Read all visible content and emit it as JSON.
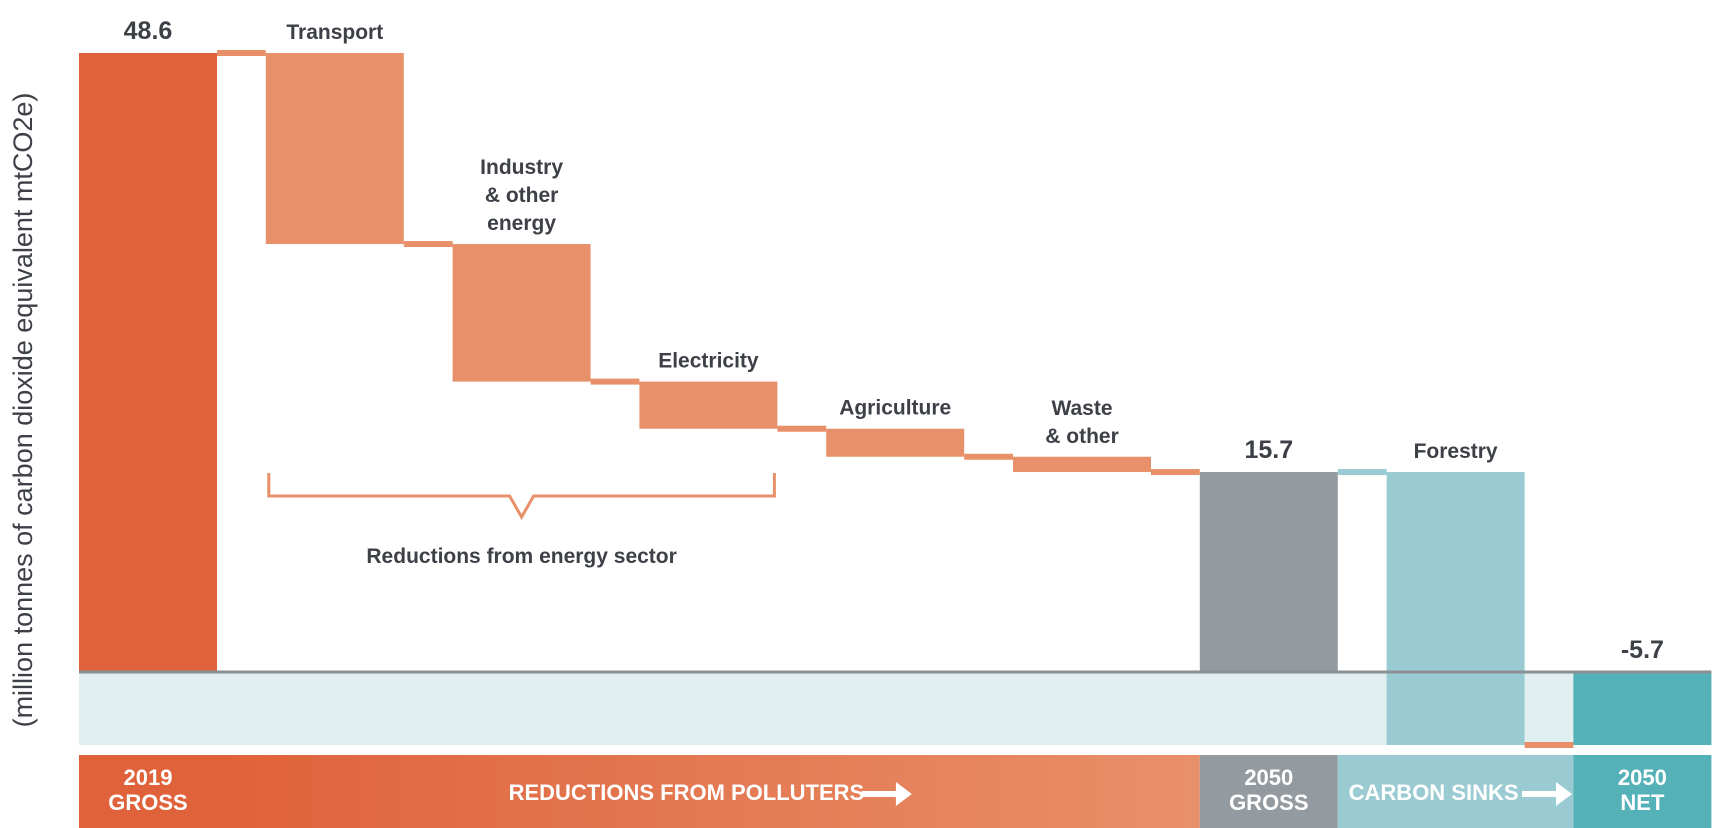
{
  "chart_data": {
    "type": "bar",
    "subtype": "waterfall",
    "ylabel": "(million tonnes of carbon dioxide equivalent mtCO2e)",
    "steps": [
      {
        "label": "",
        "kind": "total",
        "start": 0,
        "end": 48.6,
        "value_label": "48.6",
        "color": "#df623a"
      },
      {
        "label": "Transport",
        "kind": "decrease",
        "start": 48.6,
        "end": 33.6,
        "color": "#e8906a"
      },
      {
        "label": "Industry\n& other\nenergy",
        "kind": "decrease",
        "start": 33.6,
        "end": 22.8,
        "color": "#e8906a"
      },
      {
        "label": "Electricity",
        "kind": "decrease",
        "start": 22.8,
        "end": 19.1,
        "color": "#e8906a"
      },
      {
        "label": "Agriculture",
        "kind": "decrease",
        "start": 19.1,
        "end": 16.9,
        "color": "#e8906a"
      },
      {
        "label": "Waste\n& other",
        "kind": "decrease",
        "start": 16.9,
        "end": 15.7,
        "color": "#e8906a"
      },
      {
        "label": "",
        "kind": "total",
        "start": 0,
        "end": 15.7,
        "value_label": "15.7",
        "color": "#939aa0"
      },
      {
        "label": "Forestry",
        "kind": "decrease",
        "start": 15.7,
        "end": -5.7,
        "color": "#9bcbd2"
      },
      {
        "label": "",
        "kind": "total",
        "start": 0,
        "end": -5.7,
        "value_label": "-5.7",
        "color": "#55b1b8"
      }
    ],
    "ylim": [
      -5.7,
      48.6
    ],
    "annotation": {
      "text": "Reductions from energy sector",
      "spans": [
        "Transport",
        "Electricity"
      ]
    },
    "bands": [
      {
        "text": "2019\nGROSS",
        "color": "#df623a"
      },
      {
        "text": "REDUCTIONS FROM POLLUTERS",
        "arrow": true,
        "color_from": "#df623a",
        "color_to": "#e8906a"
      },
      {
        "text": "2050\nGROSS",
        "color": "#939aa0"
      },
      {
        "text": "CARBON SINKS",
        "arrow": true,
        "color": "#9bcbd2"
      },
      {
        "text": "2050\nNET",
        "color": "#55b1b8"
      }
    ],
    "colors": {
      "negative_zone": "#e1eff0",
      "zero_line": "#8a8f94",
      "label_text": "#3d4047"
    }
  }
}
